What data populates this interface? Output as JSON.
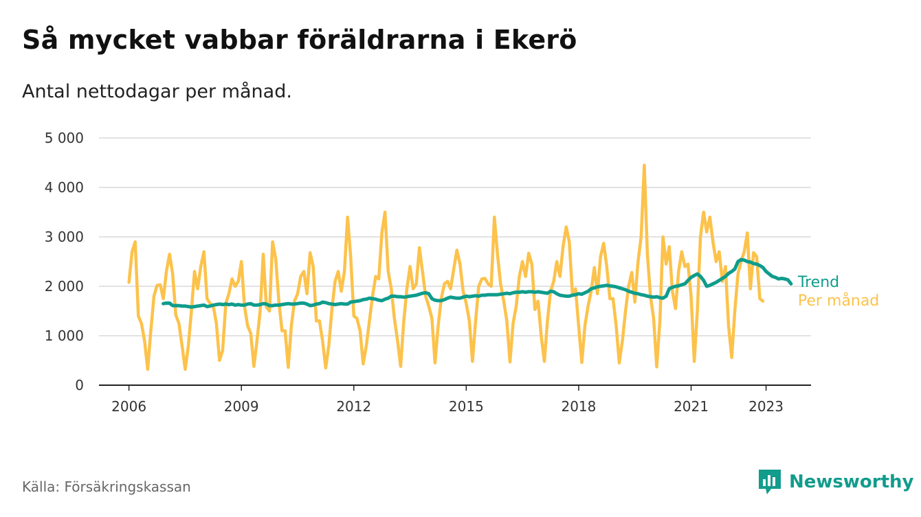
{
  "title": "Så mycket vabbar föräldrarna i Ekerö",
  "subtitle": "Antal nettodagar per månad.",
  "source": "Källa: Försäkringskassan",
  "brand": {
    "name": "Newsworthy",
    "icon": "newsworthy-logo-icon",
    "color": "#119c8c"
  },
  "chart_data": {
    "type": "line",
    "title": "Så mycket vabbar föräldrarna i Ekerö",
    "subtitle": "Antal nettodagar per månad.",
    "xlabel": "",
    "ylabel": "",
    "ylim": [
      0,
      5000
    ],
    "xlim": [
      2005.2,
      2024.2
    ],
    "grid": true,
    "legend": "right-end-labels",
    "y_ticks": [
      0,
      1000,
      2000,
      3000,
      4000,
      5000
    ],
    "y_tick_labels": [
      "0",
      "1 000",
      "2 000",
      "3 000",
      "4 000",
      "5 000"
    ],
    "x_ticks": [
      2006,
      2009,
      2012,
      2015,
      2018,
      2021,
      2023
    ],
    "x_tick_labels": [
      "2006",
      "2009",
      "2012",
      "2015",
      "2018",
      "2021",
      "2023"
    ],
    "colors": {
      "per_manad": "#fcc24b",
      "trend": "#0f9c8c"
    },
    "series": [
      {
        "name": "Per månad",
        "color": "#fcc24b",
        "start": "2006-01",
        "values": [
          2080,
          2700,
          2900,
          1400,
          1250,
          900,
          320,
          1100,
          1800,
          2020,
          2030,
          1750,
          2300,
          2650,
          2250,
          1420,
          1250,
          800,
          320,
          800,
          1500,
          2300,
          1950,
          2400,
          2700,
          1750,
          1650,
          1600,
          1250,
          500,
          700,
          1650,
          1850,
          2150,
          2000,
          2100,
          2500,
          1600,
          1200,
          1050,
          380,
          900,
          1500,
          2650,
          1580,
          1500,
          2900,
          2550,
          1700,
          1100,
          1100,
          360,
          1200,
          1700,
          1850,
          2200,
          2300,
          1850,
          2680,
          2400,
          1300,
          1300,
          900,
          350,
          800,
          1550,
          2100,
          2300,
          1900,
          2300,
          3400,
          2600,
          1400,
          1350,
          1100,
          430,
          800,
          1300,
          1800,
          2200,
          2150,
          3100,
          3500,
          2300,
          1950,
          1350,
          900,
          380,
          1300,
          1950,
          2400,
          1950,
          2050,
          2780,
          2300,
          1800,
          1600,
          1350,
          450,
          1200,
          1750,
          2050,
          2100,
          1950,
          2350,
          2730,
          2450,
          1900,
          1650,
          1300,
          480,
          1300,
          2000,
          2150,
          2160,
          2050,
          2000,
          3400,
          2650,
          2050,
          1700,
          1300,
          470,
          1250,
          1600,
          2200,
          2500,
          2200,
          2670,
          2450,
          1530,
          1700,
          1000,
          480,
          1300,
          1900,
          2100,
          2500,
          2200,
          2800,
          3200,
          2900,
          1850,
          1950,
          1200,
          460,
          1200,
          1600,
          1900,
          2380,
          1850,
          2600,
          2870,
          2400,
          1750,
          1750,
          1200,
          450,
          900,
          1500,
          2000,
          2280,
          1680,
          2500,
          3000,
          4450,
          2650,
          1800,
          1350,
          370,
          1300,
          3000,
          2450,
          2800,
          1900,
          1550,
          2300,
          2700,
          2400,
          2450,
          1800,
          480,
          1500,
          3000,
          3500,
          3100,
          3400,
          2900,
          2500,
          2700,
          2100,
          2400,
          1200,
          560,
          1500,
          2250,
          2500,
          2700,
          3080,
          1950,
          2680,
          2600,
          1750,
          1700
        ]
      },
      {
        "name": "Trend",
        "color": "#0f9c8c",
        "start": "2006-12",
        "values": [
          1650,
          1660,
          1660,
          1610,
          1610,
          1610,
          1600,
          1600,
          1590,
          1580,
          1590,
          1600,
          1610,
          1620,
          1590,
          1600,
          1620,
          1630,
          1640,
          1630,
          1640,
          1630,
          1640,
          1620,
          1630,
          1620,
          1620,
          1640,
          1650,
          1620,
          1620,
          1630,
          1650,
          1640,
          1610,
          1610,
          1620,
          1620,
          1630,
          1640,
          1650,
          1640,
          1640,
          1650,
          1660,
          1660,
          1640,
          1610,
          1620,
          1640,
          1650,
          1680,
          1670,
          1650,
          1640,
          1630,
          1640,
          1650,
          1640,
          1640,
          1680,
          1690,
          1700,
          1710,
          1730,
          1740,
          1760,
          1750,
          1740,
          1720,
          1710,
          1740,
          1760,
          1800,
          1800,
          1790,
          1790,
          1780,
          1790,
          1800,
          1810,
          1820,
          1840,
          1860,
          1870,
          1850,
          1750,
          1720,
          1710,
          1710,
          1730,
          1760,
          1780,
          1770,
          1760,
          1760,
          1780,
          1800,
          1790,
          1800,
          1810,
          1800,
          1820,
          1820,
          1830,
          1830,
          1830,
          1830,
          1840,
          1850,
          1860,
          1850,
          1870,
          1880,
          1880,
          1890,
          1880,
          1890,
          1890,
          1880,
          1890,
          1880,
          1870,
          1860,
          1900,
          1890,
          1850,
          1820,
          1810,
          1800,
          1800,
          1820,
          1830,
          1850,
          1840,
          1870,
          1900,
          1950,
          1970,
          1990,
          2000,
          2010,
          2020,
          2010,
          2000,
          1990,
          1970,
          1950,
          1930,
          1900,
          1880,
          1860,
          1850,
          1830,
          1820,
          1800,
          1790,
          1780,
          1790,
          1770,
          1760,
          1800,
          1950,
          1980,
          2000,
          2010,
          2030,
          2050,
          2120,
          2180,
          2220,
          2250,
          2200,
          2120,
          2000,
          2020,
          2050,
          2080,
          2120,
          2160,
          2200,
          2260,
          2300,
          2350,
          2500,
          2540,
          2530,
          2500,
          2490,
          2460,
          2450,
          2420,
          2380,
          2300,
          2250,
          2200,
          2180,
          2150,
          2160,
          2150,
          2130,
          2050
        ]
      }
    ]
  }
}
